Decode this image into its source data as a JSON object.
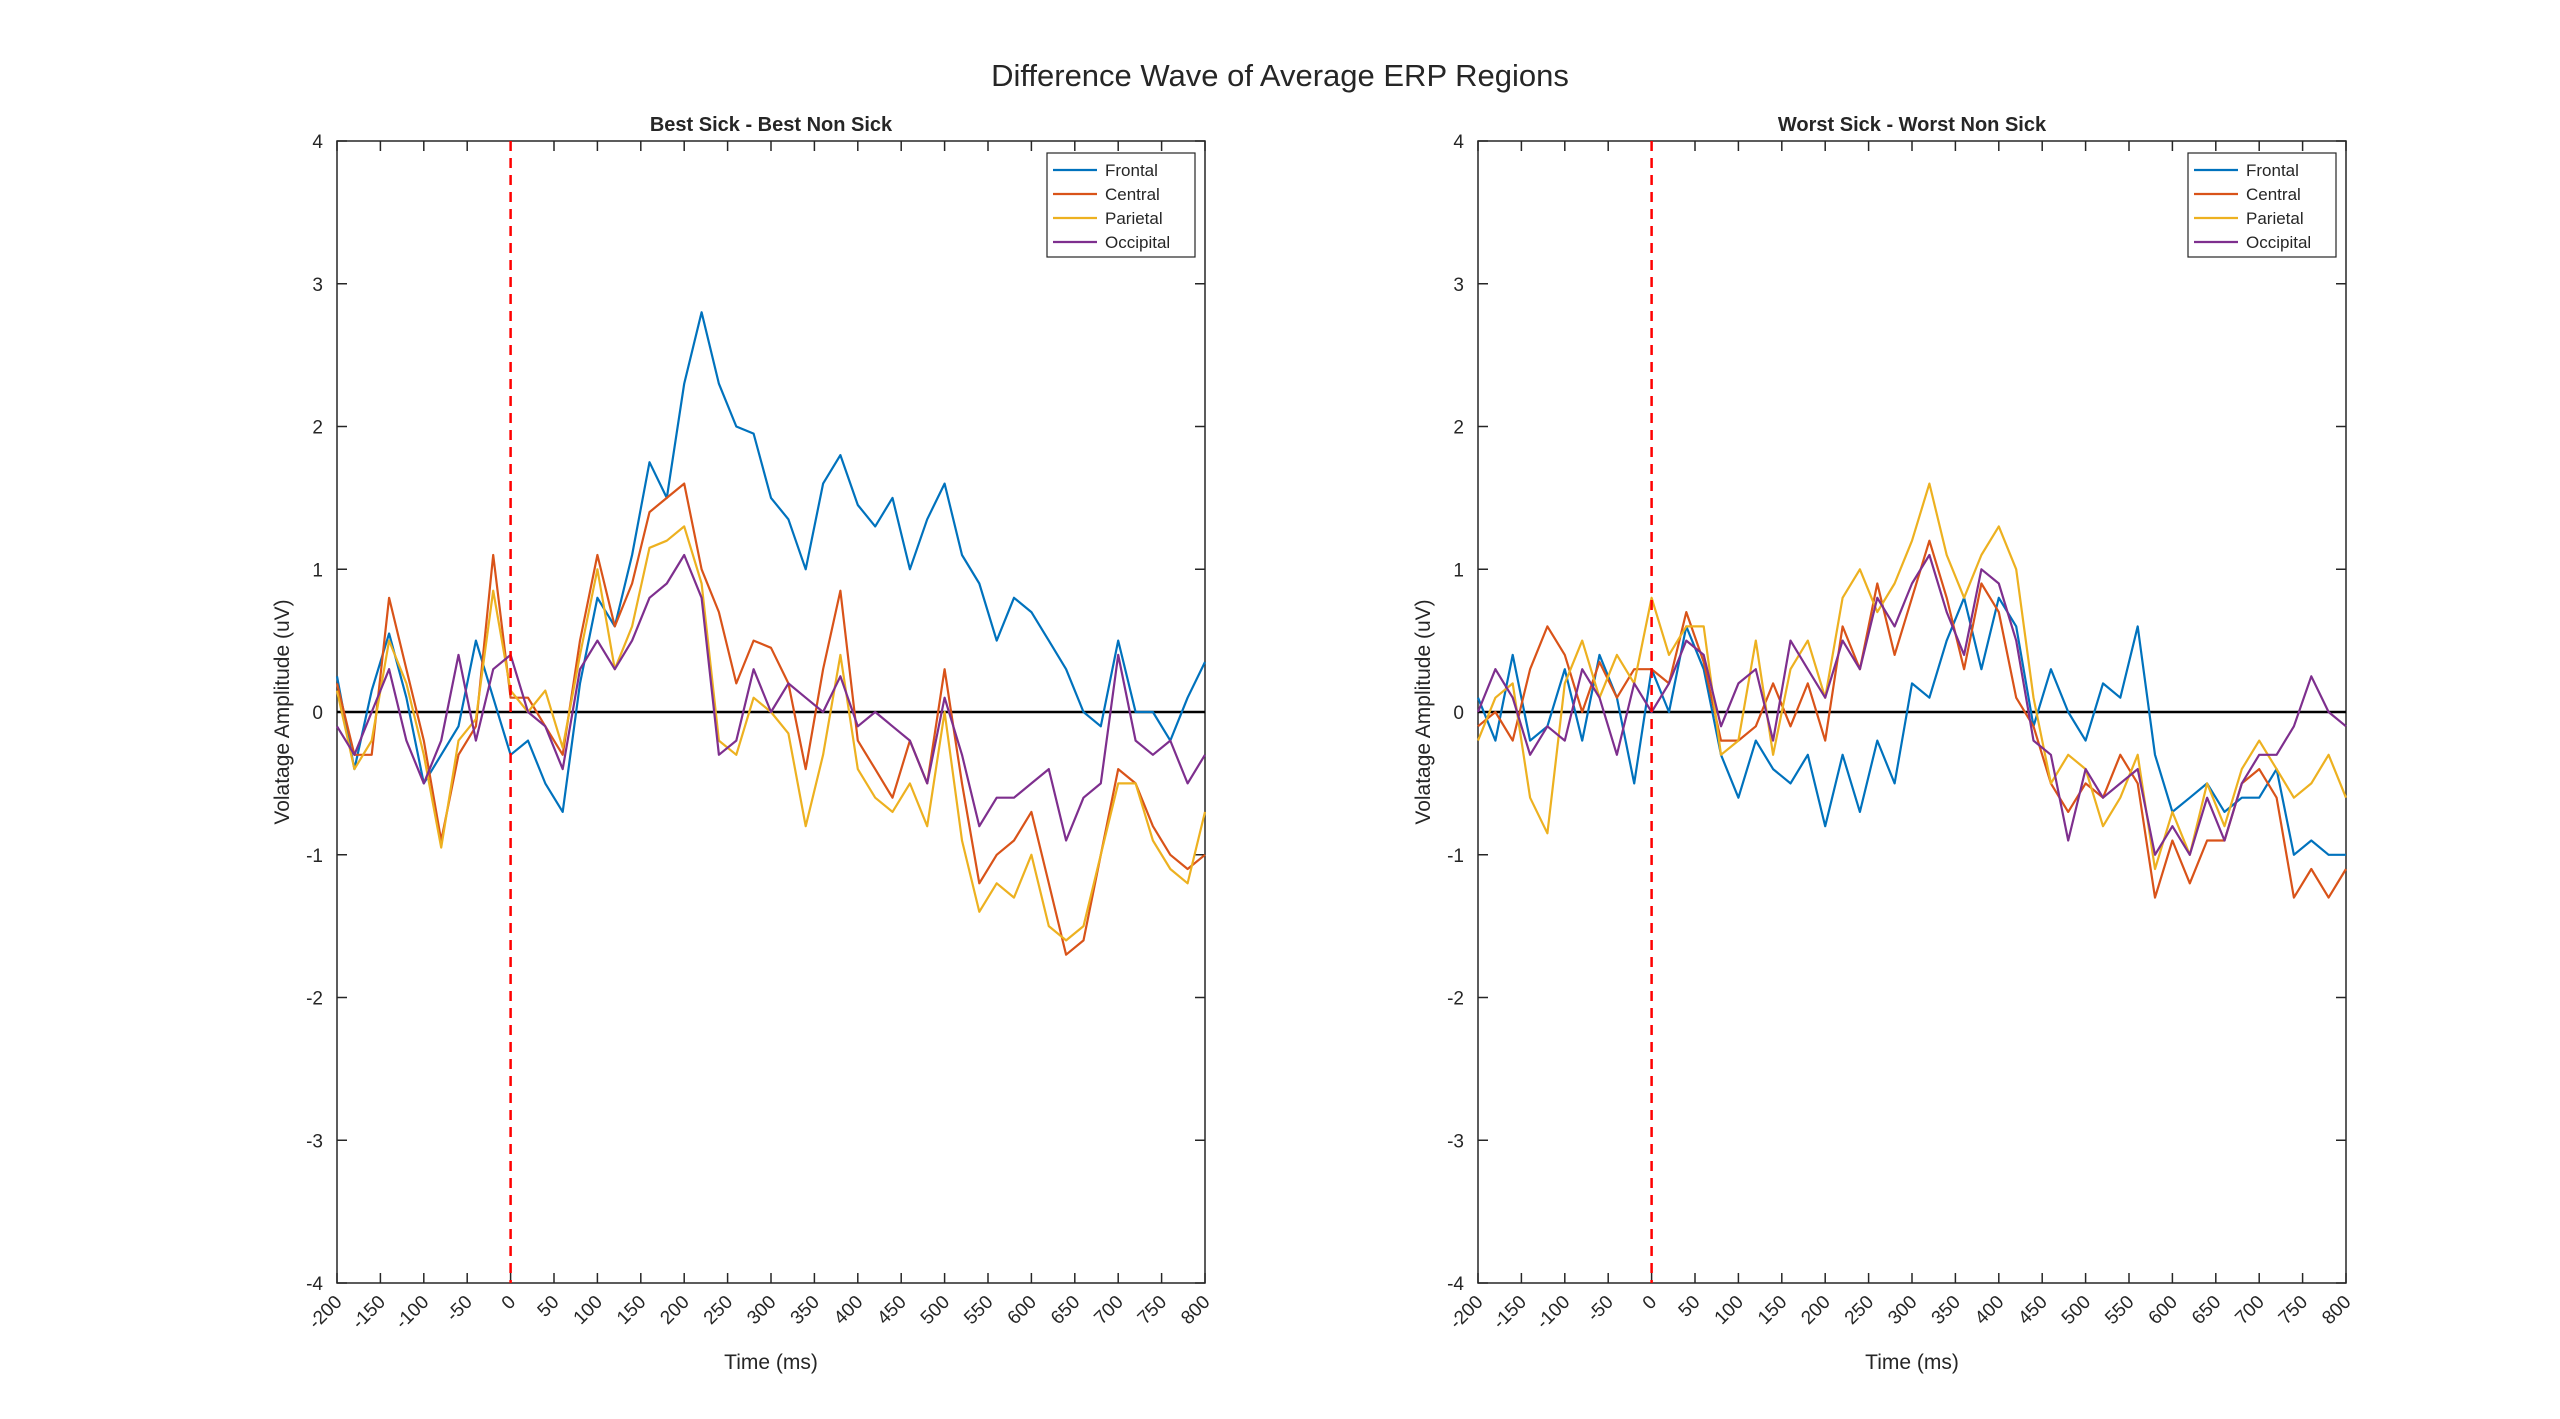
{
  "figure": {
    "title": "Difference Wave of Average ERP Regions"
  },
  "colors": {
    "Frontal": "#0072BD",
    "Central": "#D95319",
    "Parietal": "#EDB120",
    "Occipital": "#7E2F8E",
    "green_overlap": "#77AC30",
    "onset_line": "#FF0000",
    "zero_line": "#000000"
  },
  "chart_data": [
    {
      "type": "line",
      "title": "Best Sick - Best Non Sick",
      "xlabel": "Time (ms)",
      "ylabel": "Volatage Amplitude (uV)",
      "xlim": [
        -200,
        800
      ],
      "ylim": [
        -4,
        4
      ],
      "xticks": [
        -200,
        -150,
        -100,
        -50,
        0,
        50,
        100,
        150,
        200,
        250,
        300,
        350,
        400,
        450,
        500,
        550,
        600,
        650,
        700,
        750,
        800
      ],
      "yticks": [
        -4,
        -3,
        -2,
        -1,
        0,
        1,
        2,
        3,
        4
      ],
      "onset_marker_x": 0,
      "zero_line_y": 0,
      "legend_position": "top-right",
      "x": [
        -200,
        -180,
        -160,
        -140,
        -120,
        -100,
        -80,
        -60,
        -40,
        -20,
        0,
        20,
        40,
        60,
        80,
        100,
        120,
        140,
        160,
        180,
        200,
        220,
        240,
        260,
        280,
        300,
        320,
        340,
        360,
        380,
        400,
        420,
        440,
        460,
        480,
        500,
        520,
        540,
        560,
        580,
        600,
        620,
        640,
        660,
        680,
        700,
        720,
        740,
        760,
        780,
        800
      ],
      "series": [
        {
          "name": "Frontal",
          "values": [
            0.25,
            -0.4,
            0.15,
            0.55,
            0.1,
            -0.5,
            -0.3,
            -0.1,
            0.5,
            0.1,
            -0.3,
            -0.2,
            -0.5,
            -0.7,
            0.2,
            0.8,
            0.6,
            1.1,
            1.75,
            1.5,
            2.3,
            2.8,
            2.3,
            2.0,
            1.95,
            1.5,
            1.35,
            1.0,
            1.6,
            1.8,
            1.45,
            1.3,
            1.5,
            1.0,
            1.35,
            1.6,
            1.1,
            0.9,
            0.5,
            0.8,
            0.7,
            0.5,
            0.3,
            0.0,
            -0.1,
            0.5,
            0.0,
            0.0,
            -0.2,
            0.1,
            0.35
          ]
        },
        {
          "name": "Central",
          "values": [
            0.2,
            -0.3,
            -0.3,
            0.8,
            0.3,
            -0.2,
            -0.9,
            -0.3,
            -0.1,
            1.1,
            0.1,
            0.1,
            -0.1,
            -0.3,
            0.5,
            1.1,
            0.6,
            0.9,
            1.4,
            1.5,
            1.6,
            1.0,
            0.7,
            0.2,
            0.5,
            0.45,
            0.2,
            -0.4,
            0.3,
            0.85,
            -0.2,
            -0.4,
            -0.6,
            -0.2,
            -0.5,
            0.3,
            -0.5,
            -1.2,
            -1.0,
            -0.9,
            -0.7,
            -1.2,
            -1.7,
            -1.6,
            -1.0,
            -0.4,
            -0.5,
            -0.8,
            -1.0,
            -1.1,
            -1.0
          ]
        },
        {
          "name": "Parietal",
          "values": [
            0.15,
            -0.4,
            -0.2,
            0.5,
            0.2,
            -0.3,
            -0.95,
            -0.2,
            -0.05,
            0.85,
            0.15,
            0.0,
            0.15,
            -0.25,
            0.4,
            1.0,
            0.3,
            0.6,
            1.15,
            1.2,
            1.3,
            0.9,
            -0.2,
            -0.3,
            0.1,
            0.0,
            -0.15,
            -0.8,
            -0.3,
            0.4,
            -0.4,
            -0.6,
            -0.7,
            -0.5,
            -0.8,
            0.0,
            -0.9,
            -1.4,
            -1.2,
            -1.3,
            -1.0,
            -1.5,
            -1.6,
            -1.5,
            -1.0,
            -0.5,
            -0.5,
            -0.9,
            -1.1,
            -1.2,
            -0.7
          ]
        },
        {
          "name": "Occipital",
          "values": [
            -0.1,
            -0.3,
            0.0,
            0.3,
            -0.2,
            -0.5,
            -0.2,
            0.4,
            -0.2,
            0.3,
            0.4,
            0.0,
            -0.1,
            -0.4,
            0.3,
            0.5,
            0.3,
            0.5,
            0.8,
            0.9,
            1.1,
            0.8,
            -0.3,
            -0.2,
            0.3,
            0.0,
            0.2,
            0.1,
            0.0,
            0.25,
            -0.1,
            0.0,
            -0.1,
            -0.2,
            -0.5,
            0.1,
            -0.3,
            -0.8,
            -0.6,
            -0.6,
            -0.5,
            -0.4,
            -0.9,
            -0.6,
            -0.5,
            0.4,
            -0.2,
            -0.3,
            -0.2,
            -0.5,
            -0.3
          ]
        }
      ]
    },
    {
      "type": "line",
      "title": "Worst Sick - Worst Non Sick",
      "xlabel": "Time (ms)",
      "ylabel": "Volatage Amplitude (uV)",
      "xlim": [
        -200,
        800
      ],
      "ylim": [
        -4,
        4
      ],
      "xticks": [
        -200,
        -150,
        -100,
        -50,
        0,
        50,
        100,
        150,
        200,
        250,
        300,
        350,
        400,
        450,
        500,
        550,
        600,
        650,
        700,
        750,
        800
      ],
      "yticks": [
        -4,
        -3,
        -2,
        -1,
        0,
        1,
        2,
        3,
        4
      ],
      "onset_marker_x": 0,
      "zero_line_y": 0,
      "legend_position": "top-right",
      "x": [
        -200,
        -180,
        -160,
        -140,
        -120,
        -100,
        -80,
        -60,
        -40,
        -20,
        0,
        20,
        40,
        60,
        80,
        100,
        120,
        140,
        160,
        180,
        200,
        220,
        240,
        260,
        280,
        300,
        320,
        340,
        360,
        380,
        400,
        420,
        440,
        460,
        480,
        500,
        520,
        540,
        560,
        580,
        600,
        620,
        640,
        660,
        680,
        700,
        720,
        740,
        760,
        780,
        800
      ],
      "series": [
        {
          "name": "Frontal",
          "values": [
            0.1,
            -0.2,
            0.4,
            -0.2,
            -0.1,
            0.3,
            -0.2,
            0.4,
            0.1,
            -0.5,
            0.3,
            0.0,
            0.6,
            0.3,
            -0.3,
            -0.6,
            -0.2,
            -0.4,
            -0.5,
            -0.3,
            -0.8,
            -0.3,
            -0.7,
            -0.2,
            -0.5,
            0.2,
            0.1,
            0.5,
            0.8,
            0.3,
            0.8,
            0.6,
            -0.1,
            0.3,
            0.0,
            -0.2,
            0.2,
            0.1,
            0.6,
            -0.3,
            -0.7,
            -0.6,
            -0.5,
            -0.7,
            -0.6,
            -0.6,
            -0.4,
            -1.0,
            -0.9,
            -1.0,
            -1.0
          ]
        },
        {
          "name": "Central",
          "values": [
            -0.1,
            0.0,
            -0.2,
            0.3,
            0.6,
            0.4,
            0.0,
            0.35,
            0.1,
            0.3,
            0.3,
            0.2,
            0.7,
            0.35,
            -0.2,
            -0.2,
            -0.1,
            0.2,
            -0.1,
            0.2,
            -0.2,
            0.6,
            0.3,
            0.9,
            0.4,
            0.8,
            1.2,
            0.8,
            0.3,
            0.9,
            0.7,
            0.1,
            -0.1,
            -0.5,
            -0.7,
            -0.5,
            -0.6,
            -0.3,
            -0.5,
            -1.3,
            -0.9,
            -1.2,
            -0.9,
            -0.9,
            -0.5,
            -0.4,
            -0.6,
            -1.3,
            -1.1,
            -1.3,
            -1.1
          ]
        },
        {
          "name": "Parietal",
          "values": [
            -0.2,
            0.1,
            0.2,
            -0.6,
            -0.85,
            0.2,
            0.5,
            0.1,
            0.4,
            0.2,
            0.8,
            0.4,
            0.6,
            0.6,
            -0.3,
            -0.2,
            0.5,
            -0.3,
            0.3,
            0.5,
            0.1,
            0.8,
            1.0,
            0.7,
            0.9,
            1.2,
            1.6,
            1.1,
            0.8,
            1.1,
            1.3,
            1.0,
            0.1,
            -0.5,
            -0.3,
            -0.4,
            -0.8,
            -0.6,
            -0.3,
            -1.1,
            -0.7,
            -1.0,
            -0.5,
            -0.8,
            -0.4,
            -0.2,
            -0.4,
            -0.6,
            -0.5,
            -0.3,
            -0.6
          ]
        },
        {
          "name": "Occipital",
          "values": [
            0.0,
            0.3,
            0.1,
            -0.3,
            -0.1,
            -0.2,
            0.3,
            0.1,
            -0.3,
            0.2,
            0.0,
            0.2,
            0.5,
            0.4,
            -0.1,
            0.2,
            0.3,
            -0.2,
            0.5,
            0.3,
            0.1,
            0.5,
            0.3,
            0.8,
            0.6,
            0.9,
            1.1,
            0.7,
            0.4,
            1.0,
            0.9,
            0.5,
            -0.2,
            -0.3,
            -0.9,
            -0.4,
            -0.6,
            -0.5,
            -0.4,
            -1.0,
            -0.8,
            -1.0,
            -0.6,
            -0.9,
            -0.5,
            -0.3,
            -0.3,
            -0.1,
            0.25,
            0.0,
            -0.1
          ]
        }
      ]
    }
  ]
}
